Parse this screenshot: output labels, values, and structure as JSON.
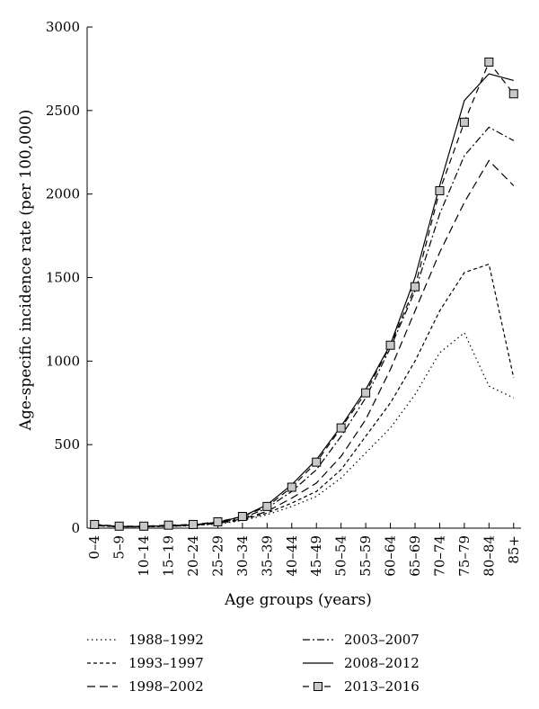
{
  "chart_data": {
    "type": "line",
    "title": "",
    "xlabel": "Age groups (years)",
    "ylabel": "Age-specific incidence rate (per 100,000)",
    "ylim": [
      0,
      3000
    ],
    "yticks": [
      0,
      500,
      1000,
      1500,
      2000,
      2500,
      3000
    ],
    "grid": false,
    "legend_position": "bottom",
    "categories": [
      "0–4",
      "5–9",
      "10–14",
      "15–19",
      "20–24",
      "25–29",
      "30–34",
      "35–39",
      "40–44",
      "45–49",
      "50–54",
      "55–59",
      "60–64",
      "65–69",
      "70–74",
      "75–79",
      "80–84",
      "85+"
    ],
    "series": [
      {
        "name": "1988–1992",
        "style": "dotted",
        "values": [
          15,
          8,
          8,
          10,
          15,
          25,
          45,
          80,
          130,
          190,
          300,
          450,
          600,
          800,
          1050,
          1170,
          850,
          780
        ]
      },
      {
        "name": "1993–1997",
        "style": "dashed",
        "values": [
          15,
          8,
          8,
          12,
          15,
          28,
          50,
          90,
          150,
          220,
          350,
          550,
          750,
          1000,
          1300,
          1530,
          1580,
          900
        ]
      },
      {
        "name": "1998–2002",
        "style": "long-dashed",
        "values": [
          18,
          8,
          10,
          12,
          18,
          30,
          55,
          100,
          180,
          270,
          430,
          650,
          950,
          1300,
          1650,
          1950,
          2200,
          2050
        ]
      },
      {
        "name": "2003–2007",
        "style": "dash-dot",
        "values": [
          20,
          10,
          10,
          15,
          20,
          35,
          60,
          120,
          220,
          350,
          550,
          780,
          1080,
          1420,
          1880,
          2230,
          2400,
          2320
        ]
      },
      {
        "name": "2008–2012",
        "style": "solid",
        "values": [
          20,
          10,
          10,
          15,
          20,
          35,
          70,
          140,
          260,
          410,
          610,
          830,
          1100,
          1500,
          2050,
          2560,
          2720,
          2680
        ]
      },
      {
        "name": "2013–2016",
        "style": "dash-square",
        "values": [
          22,
          12,
          12,
          18,
          22,
          38,
          70,
          130,
          245,
          395,
          600,
          810,
          1095,
          1445,
          2020,
          2430,
          2790,
          2600
        ]
      }
    ]
  }
}
